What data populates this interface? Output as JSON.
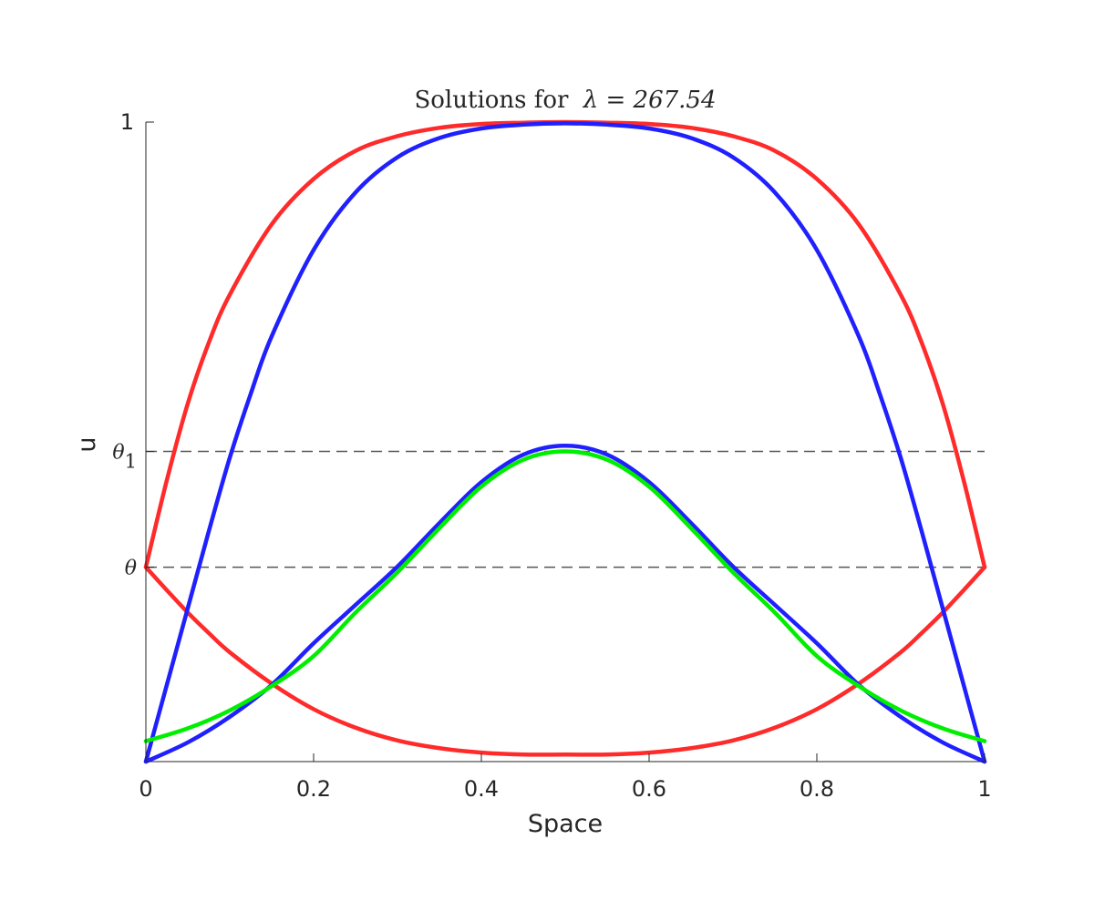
{
  "chart_data": {
    "type": "line",
    "title": "Solutions for λ = 267.54",
    "title_prefix": "Solutions for",
    "title_math": "λ = 267.54",
    "xlabel": "Space",
    "ylabel": "u",
    "xlim": [
      0,
      1
    ],
    "ylim": [
      0,
      1
    ],
    "grid": false,
    "xticks": [
      {
        "value": 0,
        "label": "0"
      },
      {
        "value": 0.2,
        "label": "0.2"
      },
      {
        "value": 0.4,
        "label": "0.4"
      },
      {
        "value": 0.6,
        "label": "0.6"
      },
      {
        "value": 0.8,
        "label": "0.8"
      },
      {
        "value": 1,
        "label": "1"
      }
    ],
    "yticks": [
      {
        "value": 0.304,
        "label": "θ",
        "sub": ""
      },
      {
        "value": 0.485,
        "label": "θ",
        "sub": "1"
      },
      {
        "value": 1,
        "label": "1",
        "sub": ""
      }
    ],
    "reference_lines": [
      {
        "y": 0.485,
        "style": "dashed",
        "color": "#555555"
      },
      {
        "y": 0.304,
        "style": "dashed",
        "color": "#555555"
      }
    ],
    "series": [
      {
        "color": "#ff2a2a",
        "x": [
          0,
          0.025,
          0.05,
          0.075,
          0.1,
          0.15,
          0.2,
          0.25,
          0.3,
          0.35,
          0.4,
          0.45,
          0.5,
          0.55,
          0.6,
          0.65,
          0.7,
          0.75,
          0.8,
          0.85,
          0.9,
          0.925,
          0.95,
          0.975,
          1
        ],
        "y": [
          0.304,
          0.44,
          0.56,
          0.655,
          0.73,
          0.84,
          0.911,
          0.955,
          0.978,
          0.991,
          0.997,
          0.999,
          1.0,
          0.999,
          0.997,
          0.991,
          0.978,
          0.955,
          0.911,
          0.84,
          0.73,
          0.655,
          0.56,
          0.44,
          0.304
        ]
      },
      {
        "color": "#ff2a2a",
        "x": [
          0,
          0.025,
          0.05,
          0.075,
          0.1,
          0.15,
          0.2,
          0.25,
          0.3,
          0.35,
          0.4,
          0.45,
          0.5,
          0.55,
          0.6,
          0.65,
          0.7,
          0.75,
          0.8,
          0.85,
          0.9,
          0.925,
          0.95,
          0.975,
          1
        ],
        "y": [
          0.304,
          0.268,
          0.233,
          0.201,
          0.171,
          0.122,
          0.082,
          0.053,
          0.033,
          0.021,
          0.014,
          0.011,
          0.011,
          0.011,
          0.014,
          0.021,
          0.033,
          0.053,
          0.082,
          0.122,
          0.171,
          0.201,
          0.233,
          0.268,
          0.304
        ]
      },
      {
        "color": "#2020ff",
        "x": [
          0,
          0.025,
          0.05,
          0.075,
          0.1,
          0.125,
          0.15,
          0.2,
          0.25,
          0.3,
          0.35,
          0.4,
          0.45,
          0.5,
          0.55,
          0.6,
          0.65,
          0.7,
          0.75,
          0.8,
          0.85,
          0.875,
          0.9,
          0.925,
          0.95,
          0.975,
          1
        ],
        "y": [
          0,
          0.12,
          0.24,
          0.36,
          0.475,
          0.575,
          0.665,
          0.8,
          0.89,
          0.945,
          0.975,
          0.99,
          0.996,
          0.998,
          0.996,
          0.99,
          0.975,
          0.945,
          0.89,
          0.8,
          0.665,
          0.575,
          0.475,
          0.36,
          0.24,
          0.12,
          0
        ]
      },
      {
        "color": "#2020ff",
        "x": [
          0,
          0.05,
          0.1,
          0.15,
          0.2,
          0.25,
          0.3,
          0.35,
          0.4,
          0.45,
          0.5,
          0.55,
          0.6,
          0.65,
          0.7,
          0.75,
          0.8,
          0.85,
          0.9,
          0.95,
          1
        ],
        "y": [
          0,
          0.03,
          0.07,
          0.12,
          0.185,
          0.245,
          0.305,
          0.373,
          0.437,
          0.48,
          0.494,
          0.48,
          0.437,
          0.373,
          0.305,
          0.245,
          0.185,
          0.12,
          0.07,
          0.03,
          0
        ]
      },
      {
        "color": "#00ee00",
        "x": [
          0,
          0.05,
          0.1,
          0.15,
          0.2,
          0.25,
          0.3,
          0.35,
          0.4,
          0.45,
          0.5,
          0.55,
          0.6,
          0.65,
          0.7,
          0.75,
          0.8,
          0.85,
          0.9,
          0.95,
          1
        ],
        "y": [
          0.032,
          0.052,
          0.08,
          0.118,
          0.165,
          0.233,
          0.296,
          0.365,
          0.43,
          0.472,
          0.485,
          0.472,
          0.43,
          0.365,
          0.296,
          0.233,
          0.165,
          0.118,
          0.08,
          0.052,
          0.032
        ]
      }
    ]
  }
}
